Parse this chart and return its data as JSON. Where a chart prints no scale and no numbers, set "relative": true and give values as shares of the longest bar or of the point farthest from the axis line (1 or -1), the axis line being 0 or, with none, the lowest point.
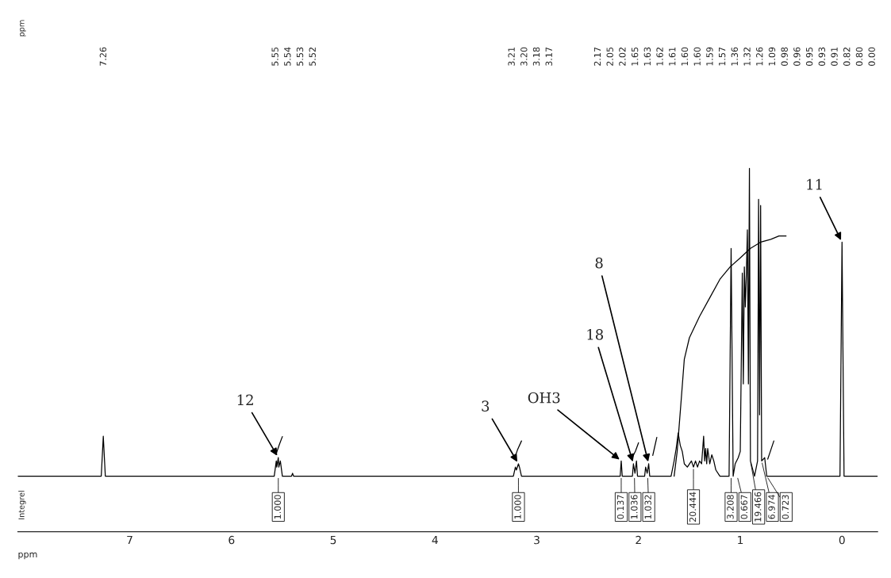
{
  "chart_data": {
    "type": "line",
    "relative": true,
    "xlabel": "ppm",
    "xlim": [
      8.1,
      -0.35
    ],
    "xticks": [
      7,
      6,
      5,
      4,
      3,
      2,
      1,
      0
    ],
    "grid": false,
    "legend": false,
    "line_style": "solid",
    "marker": "none",
    "series": [
      {
        "color": "#000000",
        "x": [
          8.1,
          7.28,
          7.26,
          7.24,
          5.58,
          5.56,
          5.555,
          5.54,
          5.535,
          5.52,
          5.5,
          5.41,
          5.4,
          5.39,
          3.23,
          3.21,
          3.2,
          3.18,
          3.17,
          3.15,
          2.18,
          2.17,
          2.16,
          2.06,
          2.05,
          2.035,
          2.02,
          2.01,
          1.94,
          1.93,
          1.915,
          1.9,
          1.89,
          1.68,
          1.65,
          1.63,
          1.61,
          1.6,
          1.59,
          1.57,
          1.55,
          1.52,
          1.48,
          1.46,
          1.44,
          1.42,
          1.4,
          1.38,
          1.36,
          1.35,
          1.34,
          1.33,
          1.32,
          1.3,
          1.28,
          1.26,
          1.24,
          1.2,
          1.11,
          1.09,
          1.07,
          1.05,
          1.02,
          1.0,
          0.98,
          0.97,
          0.96,
          0.95,
          0.94,
          0.93,
          0.92,
          0.91,
          0.9,
          0.86,
          0.83,
          0.82,
          0.81,
          0.8,
          0.79,
          0.76,
          0.74,
          0.02,
          0.0,
          -0.02,
          -0.35
        ],
        "values": [
          0.153,
          0.153,
          0.263,
          0.153,
          0.153,
          0.195,
          0.178,
          0.204,
          0.178,
          0.195,
          0.153,
          0.153,
          0.161,
          0.153,
          0.153,
          0.178,
          0.17,
          0.187,
          0.178,
          0.153,
          0.153,
          0.195,
          0.153,
          0.153,
          0.187,
          0.161,
          0.195,
          0.153,
          0.153,
          0.178,
          0.161,
          0.187,
          0.153,
          0.153,
          0.195,
          0.229,
          0.272,
          0.255,
          0.238,
          0.221,
          0.187,
          0.178,
          0.195,
          0.178,
          0.195,
          0.178,
          0.195,
          0.187,
          0.263,
          0.195,
          0.229,
          0.187,
          0.229,
          0.187,
          0.212,
          0.195,
          0.17,
          0.153,
          0.153,
          0.78,
          0.153,
          0.187,
          0.204,
          0.221,
          0.712,
          0.407,
          0.729,
          0.619,
          0.712,
          0.831,
          0.407,
          1.0,
          0.195,
          0.153,
          0.195,
          0.915,
          0.322,
          0.898,
          0.195,
          0.204,
          0.153,
          0.153,
          0.797,
          0.153,
          0.153
        ]
      },
      {
        "color": "#000000",
        "x": [
          5.56,
          5.53,
          5.5,
          5.4,
          3.22,
          3.19,
          3.15,
          2.5,
          2.07,
          2.03,
          2.0,
          1.97,
          1.86,
          1.84,
          1.82,
          1.8,
          1.65,
          1.62,
          1.58,
          1.55,
          1.5,
          1.4,
          1.3,
          1.2,
          1.1,
          1.0,
          0.9,
          0.8,
          0.7,
          0.62,
          0.55
        ],
        "values": [
          0.215,
          0.24,
          0.262,
          null,
          0.2,
          0.225,
          0.25,
          null,
          0.2,
          0.222,
          0.245,
          null,
          0.21,
          0.235,
          0.26,
          null,
          0.153,
          0.221,
          0.365,
          0.475,
          0.534,
          0.593,
          0.644,
          0.695,
          0.729,
          0.754,
          0.78,
          0.797,
          0.805,
          0.814,
          0.814
        ]
      },
      {
        "color": "#000000",
        "x": [
          0.73,
          0.7,
          0.67
        ],
        "values": [
          0.2,
          0.225,
          0.25
        ]
      }
    ],
    "annotations": [
      "ppm",
      "Integrel",
      "7.26",
      "5.55",
      "5.54",
      "5.53",
      "5.52",
      "3.21",
      "3.20",
      "3.18",
      "3.17",
      "2.17",
      "2.05",
      "2.02",
      "1.65",
      "1.63",
      "1.62",
      "1.61",
      "1.60",
      "1.60",
      "1.59",
      "1.57",
      "1.36",
      "1.32",
      "1.26",
      "1.09",
      "0.98",
      "0.96",
      "0.95",
      "0.93",
      "0.91",
      "0.82",
      "0.80",
      "0.00",
      {
        "text": "1.000",
        "x": 5.54,
        "y": 0.153
      },
      {
        "text": "1.000",
        "x": 3.18,
        "y": 0.153
      },
      {
        "text": "0.137",
        "x": 2.17,
        "y": 0.153
      },
      {
        "text": "1.036",
        "x": 2.04,
        "y": 0.153
      },
      {
        "text": "1.032",
        "x": 1.91,
        "y": 0.153
      },
      {
        "text": "20.444",
        "x": 1.46,
        "y": 0.178
      },
      {
        "text": "3.208",
        "x": 1.09,
        "y": 0.153
      },
      {
        "text": "0.667",
        "x": 1.03,
        "y": 0.153
      },
      {
        "text": "19.466",
        "x": 0.9,
        "y": 0.195
      },
      {
        "text": "6.974",
        "x": 0.79,
        "y": 0.195
      },
      {
        "text": "0.723",
        "x": 0.74,
        "y": 0.153
      },
      {
        "text": "12",
        "x": 5.54,
        "y": 0.204
      },
      {
        "text": "3",
        "x": 3.18,
        "y": 0.187
      },
      {
        "text": "OH3",
        "x": 2.17,
        "y": 0.195
      },
      {
        "text": "18",
        "x": 2.05,
        "y": 0.187
      },
      {
        "text": "8",
        "x": 1.9,
        "y": 0.187
      },
      {
        "text": "11",
        "x": 0.0,
        "y": 0.797
      }
    ]
  }
}
